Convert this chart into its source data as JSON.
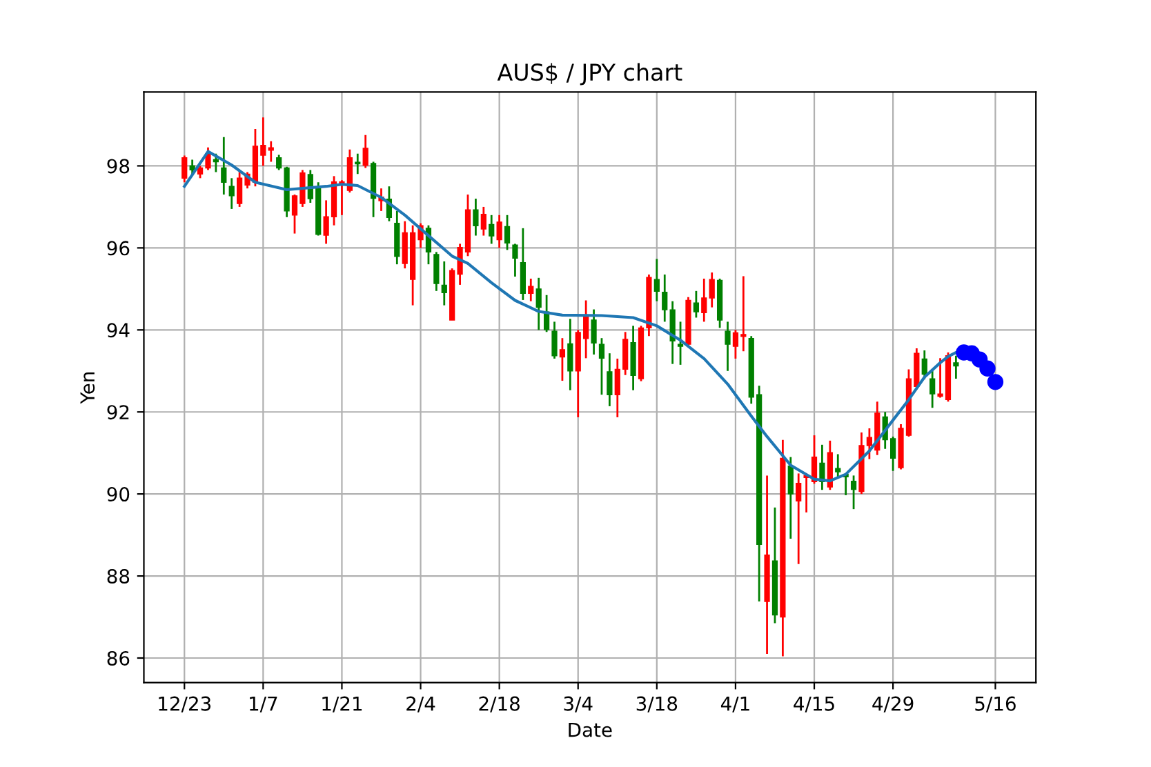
{
  "chart_data": {
    "type": "candlestick",
    "title": "AUS$ / JPY chart",
    "xlabel": "Date",
    "ylabel": "Yen",
    "categories": [
      "12/23",
      null,
      null,
      null,
      null,
      null,
      null,
      null,
      null,
      null,
      "1/7",
      null,
      null,
      null,
      null,
      null,
      null,
      null,
      null,
      null,
      "1/21",
      null,
      null,
      null,
      null,
      null,
      null,
      null,
      null,
      null,
      "2/4",
      null,
      null,
      null,
      null,
      null,
      null,
      null,
      null,
      null,
      "2/18",
      null,
      null,
      null,
      null,
      null,
      null,
      null,
      null,
      null,
      "3/4",
      null,
      null,
      null,
      null,
      null,
      null,
      null,
      null,
      null,
      "3/18",
      null,
      null,
      null,
      null,
      null,
      null,
      null,
      null,
      null,
      "4/1",
      null,
      null,
      null,
      null,
      null,
      null,
      null,
      null,
      null,
      "4/15",
      null,
      null,
      null,
      null,
      null,
      null,
      null,
      null,
      null,
      "4/29",
      null,
      null,
      null,
      null,
      null,
      null,
      null,
      null,
      null,
      null,
      null,
      null,
      "5/16"
    ],
    "ohlc": [
      [
        97.7,
        98.25,
        97.6,
        98.2
      ],
      [
        98.0,
        98.15,
        97.75,
        97.9
      ],
      [
        97.8,
        98.0,
        97.7,
        97.95
      ],
      [
        97.95,
        98.45,
        97.9,
        98.3
      ],
      [
        98.15,
        98.3,
        97.85,
        98.1
      ],
      [
        97.95,
        98.7,
        97.3,
        97.6
      ],
      [
        97.5,
        97.7,
        96.95,
        97.27
      ],
      [
        97.08,
        97.85,
        97.0,
        97.7
      ],
      [
        97.53,
        97.85,
        97.45,
        97.8
      ],
      [
        97.6,
        98.9,
        97.5,
        98.48
      ],
      [
        98.26,
        99.18,
        98.0,
        98.5
      ],
      [
        98.38,
        98.6,
        98.1,
        98.44
      ],
      [
        98.2,
        98.27,
        97.9,
        97.95
      ],
      [
        97.95,
        97.98,
        96.75,
        96.9
      ],
      [
        96.8,
        97.3,
        96.35,
        97.27
      ],
      [
        97.08,
        97.9,
        97.0,
        97.83
      ],
      [
        97.79,
        97.9,
        97.1,
        97.2
      ],
      [
        97.45,
        97.6,
        96.3,
        96.33
      ],
      [
        96.31,
        97.16,
        96.1,
        96.76
      ],
      [
        96.76,
        97.75,
        96.55,
        97.61
      ],
      [
        97.55,
        97.65,
        96.8,
        97.61
      ],
      [
        97.4,
        98.4,
        97.35,
        98.2
      ],
      [
        98.09,
        98.3,
        97.8,
        98.05
      ],
      [
        98.01,
        98.75,
        97.95,
        98.43
      ],
      [
        98.06,
        98.1,
        96.75,
        97.21
      ],
      [
        97.15,
        97.45,
        96.9,
        97.24
      ],
      [
        97.19,
        97.5,
        96.65,
        96.74
      ],
      [
        96.6,
        96.9,
        95.6,
        95.79
      ],
      [
        95.62,
        96.65,
        95.5,
        96.37
      ],
      [
        95.23,
        96.55,
        94.6,
        96.37
      ],
      [
        96.2,
        96.6,
        96.0,
        96.54
      ],
      [
        96.48,
        96.55,
        95.6,
        95.9
      ],
      [
        95.84,
        95.9,
        94.95,
        95.13
      ],
      [
        95.09,
        95.67,
        94.6,
        94.91
      ],
      [
        94.24,
        95.5,
        94.24,
        95.45
      ],
      [
        95.36,
        96.1,
        95.1,
        96.01
      ],
      [
        95.9,
        97.3,
        95.8,
        96.93
      ],
      [
        96.93,
        97.2,
        96.3,
        96.54
      ],
      [
        96.46,
        97.0,
        96.3,
        96.82
      ],
      [
        96.57,
        96.8,
        96.1,
        96.29
      ],
      [
        96.2,
        96.8,
        96.0,
        96.63
      ],
      [
        96.52,
        96.8,
        95.95,
        96.12
      ],
      [
        96.07,
        96.1,
        95.3,
        95.75
      ],
      [
        95.64,
        96.48,
        94.73,
        94.89
      ],
      [
        94.89,
        95.25,
        94.7,
        95.06
      ],
      [
        95.0,
        95.27,
        94.0,
        94.55
      ],
      [
        94.44,
        94.85,
        93.95,
        94.01
      ],
      [
        93.97,
        94.2,
        93.3,
        93.37
      ],
      [
        93.34,
        93.8,
        92.76,
        93.52
      ],
      [
        93.66,
        94.27,
        92.53,
        93.0
      ],
      [
        93.0,
        94.0,
        91.87,
        93.94
      ],
      [
        93.79,
        94.72,
        93.31,
        94.33
      ],
      [
        94.24,
        94.5,
        93.4,
        93.68
      ],
      [
        93.65,
        93.8,
        92.42,
        93.31
      ],
      [
        92.98,
        93.43,
        92.14,
        92.42
      ],
      [
        92.42,
        93.3,
        91.87,
        93.04
      ],
      [
        93.04,
        93.95,
        92.9,
        93.77
      ],
      [
        93.69,
        94.1,
        92.53,
        92.89
      ],
      [
        92.81,
        94.1,
        92.75,
        94.05
      ],
      [
        94.05,
        95.35,
        93.85,
        95.28
      ],
      [
        95.23,
        95.73,
        94.7,
        94.94
      ],
      [
        94.92,
        95.35,
        94.2,
        94.49
      ],
      [
        94.49,
        94.7,
        93.17,
        93.73
      ],
      [
        93.65,
        94.2,
        93.15,
        93.6
      ],
      [
        93.65,
        94.8,
        93.6,
        94.72
      ],
      [
        94.66,
        94.95,
        94.3,
        94.44
      ],
      [
        94.42,
        95.25,
        94.2,
        94.78
      ],
      [
        94.78,
        95.4,
        94.55,
        95.23
      ],
      [
        95.21,
        95.25,
        94.05,
        94.24
      ],
      [
        93.97,
        94.2,
        93.0,
        93.65
      ],
      [
        93.6,
        94.0,
        93.3,
        93.93
      ],
      [
        93.84,
        95.31,
        93.48,
        93.89
      ],
      [
        93.79,
        93.85,
        92.2,
        92.36
      ],
      [
        92.42,
        92.64,
        87.38,
        88.77
      ],
      [
        87.38,
        90.45,
        86.1,
        88.51
      ],
      [
        88.37,
        89.67,
        86.85,
        87.05
      ],
      [
        87.0,
        91.32,
        86.04,
        90.87
      ],
      [
        90.68,
        90.9,
        88.91,
        90.0
      ],
      [
        89.83,
        90.5,
        88.29,
        90.26
      ],
      [
        90.4,
        90.5,
        89.55,
        90.45
      ],
      [
        90.3,
        91.43,
        90.25,
        90.9
      ],
      [
        90.75,
        91.2,
        90.1,
        90.3
      ],
      [
        90.17,
        91.3,
        90.1,
        91.01
      ],
      [
        90.62,
        90.97,
        90.4,
        90.54
      ],
      [
        90.48,
        90.5,
        89.97,
        90.42
      ],
      [
        90.31,
        90.45,
        89.63,
        90.11
      ],
      [
        90.06,
        91.5,
        90.0,
        91.18
      ],
      [
        91.18,
        91.6,
        90.85,
        91.38
      ],
      [
        91.07,
        92.25,
        90.95,
        91.97
      ],
      [
        91.88,
        92.0,
        91.1,
        91.32
      ],
      [
        91.35,
        91.4,
        90.56,
        90.87
      ],
      [
        90.64,
        91.7,
        90.6,
        91.6
      ],
      [
        91.43,
        93.04,
        91.4,
        92.81
      ],
      [
        92.62,
        93.55,
        92.55,
        93.43
      ],
      [
        93.29,
        93.5,
        92.8,
        92.92
      ],
      [
        92.81,
        93.04,
        92.1,
        92.44
      ],
      [
        92.38,
        93.31,
        92.35,
        92.44
      ],
      [
        92.3,
        93.45,
        92.25,
        93.37
      ],
      [
        93.2,
        93.37,
        92.81,
        93.12
      ],
      null,
      null,
      null,
      null,
      null
    ],
    "colors": [
      "#ff0000",
      "#008000",
      "#ff0000",
      "#ff0000",
      "#008000",
      "#008000",
      "#008000",
      "#ff0000",
      "#ff0000",
      "#ff0000",
      "#ff0000",
      "#ff0000",
      "#008000",
      "#008000",
      "#ff0000",
      "#ff0000",
      "#008000",
      "#008000",
      "#ff0000",
      "#ff0000",
      "#ff0000",
      "#ff0000",
      "#008000",
      "#ff0000",
      "#008000",
      "#ff0000",
      "#008000",
      "#008000",
      "#ff0000",
      "#ff0000",
      "#ff0000",
      "#008000",
      "#008000",
      "#008000",
      "#ff0000",
      "#ff0000",
      "#ff0000",
      "#008000",
      "#ff0000",
      "#008000",
      "#ff0000",
      "#008000",
      "#008000",
      "#008000",
      "#ff0000",
      "#008000",
      "#008000",
      "#008000",
      "#ff0000",
      "#008000",
      "#ff0000",
      "#ff0000",
      "#008000",
      "#008000",
      "#008000",
      "#ff0000",
      "#ff0000",
      "#008000",
      "#ff0000",
      "#ff0000",
      "#008000",
      "#008000",
      "#008000",
      "#008000",
      "#ff0000",
      "#008000",
      "#ff0000",
      "#ff0000",
      "#008000",
      "#008000",
      "#ff0000",
      "#ff0000",
      "#008000",
      "#008000",
      "#ff0000",
      "#008000",
      "#ff0000",
      "#008000",
      "#ff0000",
      "#ff0000",
      "#ff0000",
      "#008000",
      "#ff0000",
      "#008000",
      "#008000",
      "#008000",
      "#ff0000",
      "#ff0000",
      "#ff0000",
      "#008000",
      "#008000",
      "#ff0000",
      "#ff0000",
      "#ff0000",
      "#008000",
      "#008000",
      "#ff0000",
      "#ff0000",
      "#008000",
      null,
      null,
      null,
      null,
      null
    ],
    "series": [
      {
        "type": "line",
        "color": "#1f77b4",
        "values": [
          97.5,
          null,
          null,
          98.35,
          null,
          null,
          98.02,
          null,
          null,
          97.6,
          null,
          null,
          null,
          97.42,
          null,
          null,
          null,
          null,
          97.5,
          null,
          97.55,
          null,
          97.52,
          null,
          null,
          97.23,
          null,
          null,
          96.8,
          null,
          null,
          96.3,
          null,
          null,
          95.8,
          null,
          95.62,
          null,
          null,
          95.15,
          null,
          null,
          94.72,
          null,
          null,
          94.45,
          null,
          null,
          94.36,
          null,
          null,
          null,
          null,
          94.35,
          null,
          null,
          null,
          94.3,
          null,
          null,
          94.1,
          null,
          null,
          93.75,
          null,
          null,
          93.3,
          null,
          null,
          92.68,
          null,
          null,
          91.9,
          null,
          91.4,
          null,
          null,
          90.7,
          null,
          null,
          90.36,
          null,
          90.32,
          null,
          90.48,
          null,
          null,
          91.05,
          null,
          null,
          91.8,
          null,
          92.3,
          null,
          92.85,
          null,
          93.2,
          93.35,
          93.45,
          null,
          null,
          null,
          null,
          null
        ]
      },
      {
        "type": "scatter",
        "color": "#0000ff",
        "marker": "circle",
        "values": [
          null,
          null,
          null,
          null,
          null,
          null,
          null,
          null,
          null,
          null,
          null,
          null,
          null,
          null,
          null,
          null,
          null,
          null,
          null,
          null,
          null,
          null,
          null,
          null,
          null,
          null,
          null,
          null,
          null,
          null,
          null,
          null,
          null,
          null,
          null,
          null,
          null,
          null,
          null,
          null,
          null,
          null,
          null,
          null,
          null,
          null,
          null,
          null,
          null,
          null,
          null,
          null,
          null,
          null,
          null,
          null,
          null,
          null,
          null,
          null,
          null,
          null,
          null,
          null,
          null,
          null,
          null,
          null,
          null,
          null,
          null,
          null,
          null,
          null,
          null,
          null,
          null,
          null,
          null,
          null,
          null,
          null,
          null,
          null,
          null,
          null,
          null,
          null,
          null,
          null,
          null,
          null,
          null,
          null,
          null,
          null,
          null,
          null,
          null,
          93.45,
          93.43,
          93.28,
          93.06,
          92.73
        ]
      }
    ],
    "ylim": [
      85.4,
      99.8
    ],
    "yticks": [
      86,
      88,
      90,
      92,
      94,
      96,
      98
    ],
    "grid": true
  }
}
